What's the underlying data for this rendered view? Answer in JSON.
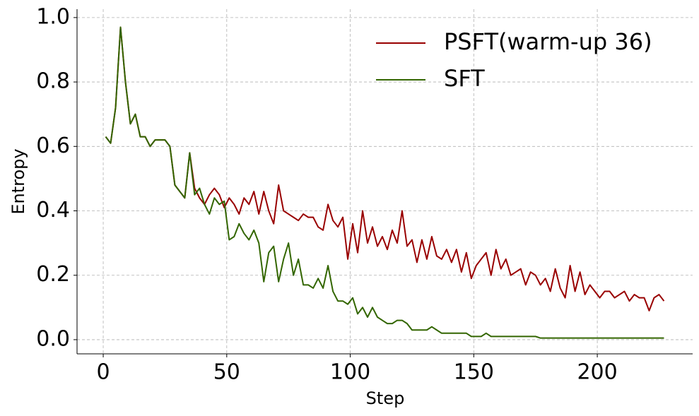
{
  "chart_data": {
    "type": "line",
    "x_label": "Step",
    "y_label": "Entropy",
    "x": [
      1,
      3,
      5,
      7,
      9,
      11,
      13,
      15,
      17,
      19,
      21,
      23,
      25,
      27,
      29,
      31,
      33,
      35,
      37,
      39,
      41,
      43,
      45,
      47,
      49,
      51,
      53,
      55,
      57,
      59,
      61,
      63,
      65,
      67,
      69,
      71,
      73,
      75,
      77,
      79,
      81,
      83,
      85,
      87,
      89,
      91,
      93,
      95,
      97,
      99,
      101,
      103,
      105,
      107,
      109,
      111,
      113,
      115,
      117,
      119,
      121,
      123,
      125,
      127,
      129,
      131,
      133,
      135,
      137,
      139,
      141,
      143,
      145,
      147,
      149,
      151,
      153,
      155,
      157,
      159,
      161,
      163,
      165,
      167,
      169,
      171,
      173,
      175,
      177,
      179,
      181,
      183,
      185,
      187,
      189,
      191,
      193,
      195,
      197,
      199,
      201,
      203,
      205,
      207,
      209,
      211,
      213,
      215,
      217,
      219,
      221,
      223,
      225,
      227
    ],
    "series": [
      {
        "name": "PSFT(warm-up 36)",
        "color": "#990000",
        "values": [
          0.63,
          0.61,
          0.72,
          0.97,
          0.8,
          0.67,
          0.7,
          0.63,
          0.63,
          0.6,
          0.62,
          0.62,
          0.62,
          0.6,
          0.48,
          0.46,
          0.44,
          0.58,
          0.47,
          0.44,
          0.42,
          0.45,
          0.47,
          0.45,
          0.41,
          0.44,
          0.42,
          0.39,
          0.44,
          0.42,
          0.46,
          0.39,
          0.46,
          0.4,
          0.36,
          0.48,
          0.4,
          0.39,
          0.38,
          0.37,
          0.39,
          0.38,
          0.38,
          0.35,
          0.34,
          0.42,
          0.37,
          0.35,
          0.38,
          0.25,
          0.36,
          0.27,
          0.4,
          0.3,
          0.35,
          0.29,
          0.32,
          0.28,
          0.34,
          0.3,
          0.4,
          0.29,
          0.31,
          0.24,
          0.31,
          0.25,
          0.32,
          0.26,
          0.25,
          0.28,
          0.24,
          0.28,
          0.21,
          0.27,
          0.19,
          0.23,
          0.25,
          0.27,
          0.2,
          0.28,
          0.22,
          0.25,
          0.2,
          0.21,
          0.22,
          0.17,
          0.21,
          0.2,
          0.17,
          0.19,
          0.15,
          0.22,
          0.16,
          0.13,
          0.23,
          0.15,
          0.21,
          0.14,
          0.17,
          0.15,
          0.13,
          0.15,
          0.15,
          0.13,
          0.14,
          0.15,
          0.12,
          0.14,
          0.13,
          0.13,
          0.09,
          0.13,
          0.14,
          0.12
        ]
      },
      {
        "name": "SFT",
        "color": "#336600",
        "values": [
          0.63,
          0.61,
          0.72,
          0.97,
          0.8,
          0.67,
          0.7,
          0.63,
          0.63,
          0.6,
          0.62,
          0.62,
          0.62,
          0.6,
          0.48,
          0.46,
          0.44,
          0.58,
          0.45,
          0.47,
          0.42,
          0.39,
          0.44,
          0.42,
          0.43,
          0.31,
          0.32,
          0.36,
          0.33,
          0.31,
          0.34,
          0.3,
          0.18,
          0.27,
          0.29,
          0.18,
          0.25,
          0.3,
          0.2,
          0.25,
          0.17,
          0.17,
          0.16,
          0.19,
          0.16,
          0.23,
          0.15,
          0.12,
          0.12,
          0.11,
          0.13,
          0.08,
          0.1,
          0.07,
          0.1,
          0.07,
          0.06,
          0.05,
          0.05,
          0.06,
          0.06,
          0.05,
          0.03,
          0.03,
          0.03,
          0.03,
          0.04,
          0.03,
          0.02,
          0.02,
          0.02,
          0.02,
          0.02,
          0.02,
          0.01,
          0.01,
          0.01,
          0.02,
          0.01,
          0.01,
          0.01,
          0.01,
          0.01,
          0.01,
          0.01,
          0.01,
          0.01,
          0.01,
          0.005,
          0.005,
          0.005,
          0.005,
          0.005,
          0.005,
          0.005,
          0.005,
          0.005,
          0.005,
          0.005,
          0.005,
          0.005,
          0.005,
          0.005,
          0.005,
          0.005,
          0.005,
          0.005,
          0.005,
          0.005,
          0.005,
          0.005,
          0.005,
          0.005,
          0.005
        ]
      }
    ],
    "xlim": [
      -10.6,
      238.6
    ],
    "xticks": [
      0,
      50,
      100,
      150,
      200
    ],
    "ylim": [
      -0.044,
      1.026
    ],
    "yticks": [
      {
        "value": 0,
        "label": "0.0"
      },
      {
        "value": 0.2,
        "label": "0.2"
      },
      {
        "value": 0.4,
        "label": "0.4"
      },
      {
        "value": 0.6,
        "label": "0.6"
      },
      {
        "value": 0.8,
        "label": "0.8"
      },
      {
        "value": 1,
        "label": "1.0"
      }
    ],
    "grid": true,
    "legend": "upper right"
  }
}
